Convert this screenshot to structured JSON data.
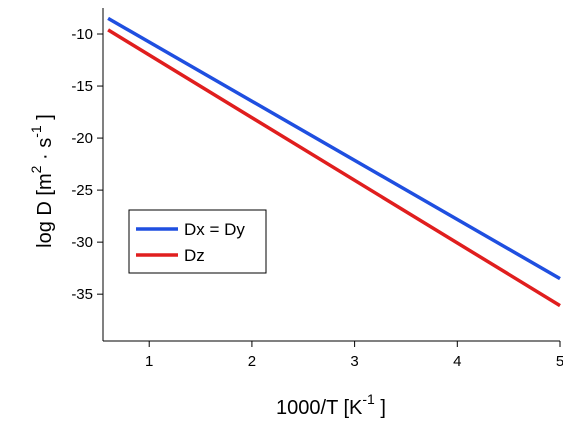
{
  "chart_data": {
    "type": "line",
    "x": [
      0.6,
      5.0
    ],
    "series": [
      {
        "name": "Dx = Dy",
        "color": "#1f4fe0",
        "y": [
          -8.5,
          -33.5
        ]
      },
      {
        "name": "Dz",
        "color": "#e01e1e",
        "y": [
          -9.6,
          -36.1
        ]
      }
    ],
    "xlabel": {
      "prefix": "1000/T [K",
      "superscript": "-1",
      "suffix": " ]"
    },
    "ylabel": {
      "prefix": "log D [m",
      "superscript1": "2",
      "middle": " · s",
      "superscript2": "-1",
      "suffix": " ]"
    },
    "xlim": [
      0.55,
      5.0
    ],
    "ylim": [
      -39.5,
      -7.5
    ],
    "xticks": [
      1,
      2,
      3,
      4,
      5
    ],
    "xtick_labels": [
      "1",
      "2",
      "3",
      "4",
      "5"
    ],
    "yticks": [
      -10,
      -15,
      -20,
      -25,
      -30,
      -35
    ],
    "ytick_labels": [
      "-10",
      "-15",
      "-20",
      "-25",
      "-30",
      "-35"
    ],
    "grid": false,
    "legend_position": "lower-left"
  }
}
